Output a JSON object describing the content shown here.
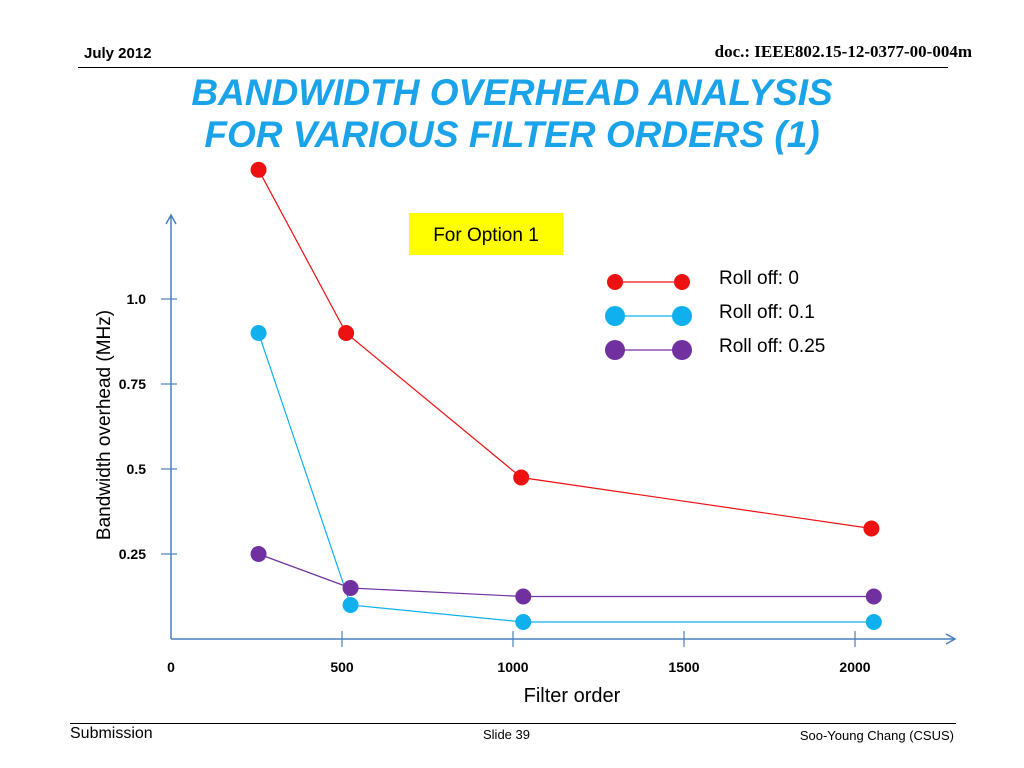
{
  "header": {
    "date": "July 2012",
    "doc_id": "doc.: IEEE802.15-12-0377-00-004m"
  },
  "title": {
    "line1": "BANDWIDTH OVERHEAD ANALYSIS",
    "line2": "FOR VARIOUS FILTER ORDERS (1)"
  },
  "footer": {
    "left": "Submission",
    "center": "Slide 39",
    "right": "Soo-Young Chang (CSUS)"
  },
  "colors": {
    "title": "#1aa3e8",
    "axis": "#4a7ebb",
    "roll_off_0": "#ee1111",
    "roll_off_0_1": "#10b0ee",
    "roll_off_0_25": "#7030a0",
    "annotation_bg": "#ffff00"
  },
  "chart_data": {
    "type": "line",
    "annotation": "For Option 1",
    "xlabel": "Filter order",
    "ylabel": "Bandwidth overhead (MHz)",
    "xlim": [
      0,
      2300
    ],
    "ylim": [
      0,
      1.25
    ],
    "x_ticks": [
      0,
      500,
      1000,
      1500,
      2000
    ],
    "x_tick_labels": [
      "0",
      "500",
      "1000",
      "1500",
      "2000"
    ],
    "y_ticks": [
      0.25,
      0.5,
      0.75,
      1.0
    ],
    "y_tick_labels": [
      "0.25",
      "0.5",
      "0.75",
      "1.0"
    ],
    "grid": false,
    "legend_position": "top-right",
    "series": [
      {
        "name": "Roll off: 0",
        "color": "#ee1111",
        "x": [
          256,
          512,
          1024,
          2048
        ],
        "y": [
          1.38,
          0.9,
          0.475,
          0.325
        ]
      },
      {
        "name": "Roll off: 0.1",
        "color": "#10b0ee",
        "x": [
          256,
          525,
          1030,
          2055
        ],
        "y": [
          0.9,
          0.1,
          0.05,
          0.05
        ]
      },
      {
        "name": "Roll off: 0.25",
        "color": "#7030a0",
        "x": [
          256,
          525,
          1030,
          2055
        ],
        "y": [
          0.25,
          0.15,
          0.125,
          0.125
        ]
      }
    ]
  }
}
